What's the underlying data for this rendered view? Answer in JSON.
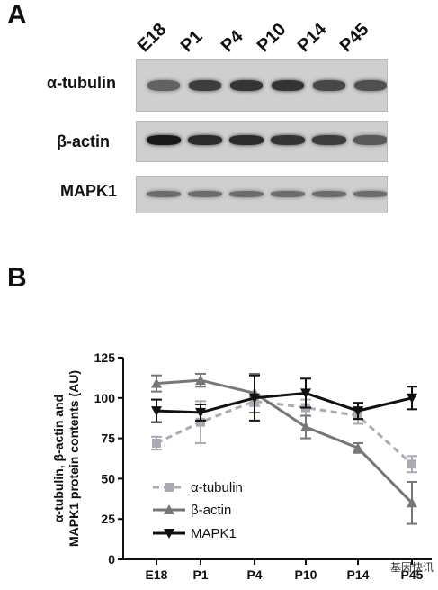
{
  "panel_a": {
    "letter": "A",
    "lanes": [
      "E18",
      "P1",
      "P4",
      "P10",
      "P14",
      "P45"
    ],
    "blots": [
      {
        "label": "α-tubulin",
        "intensity": [
          0.55,
          0.75,
          0.8,
          0.8,
          0.7,
          0.65
        ]
      },
      {
        "label": "β-actin",
        "intensity": [
          0.95,
          0.85,
          0.85,
          0.8,
          0.75,
          0.6
        ]
      },
      {
        "label": "MAPK1",
        "intensity": [
          0.5,
          0.5,
          0.5,
          0.5,
          0.5,
          0.5
        ]
      }
    ]
  },
  "panel_b": {
    "letter": "B",
    "watermark": "基因快讯"
  },
  "chart_data": {
    "type": "line",
    "categories": [
      "E18",
      "P1",
      "P4",
      "P10",
      "P14",
      "P45"
    ],
    "ylabel_lines": [
      "α-tubulin, β-actin and",
      "MAPK1 protein contents (AU)"
    ],
    "xlabel": "",
    "ylim": [
      0,
      125
    ],
    "yticks": [
      0,
      25,
      50,
      75,
      100,
      125
    ],
    "legend_position": "bottom-left",
    "series": [
      {
        "name": "α-tubulin",
        "color": "#a8aab4",
        "dashed": true,
        "marker": "square",
        "values": [
          72,
          85,
          98,
          94,
          89,
          59
        ],
        "errors": [
          4,
          13,
          3,
          5,
          5,
          5
        ]
      },
      {
        "name": "β-actin",
        "color": "#777777",
        "dashed": false,
        "marker": "triangle-up",
        "values": [
          109,
          111,
          103,
          82,
          69,
          35
        ],
        "errors": [
          5,
          4,
          12,
          7,
          3,
          13
        ]
      },
      {
        "name": "MAPK1",
        "color": "#111111",
        "dashed": false,
        "marker": "triangle-down",
        "values": [
          92,
          91,
          100,
          103,
          92,
          100
        ],
        "errors": [
          7,
          5,
          14,
          9,
          5,
          7
        ]
      }
    ]
  }
}
